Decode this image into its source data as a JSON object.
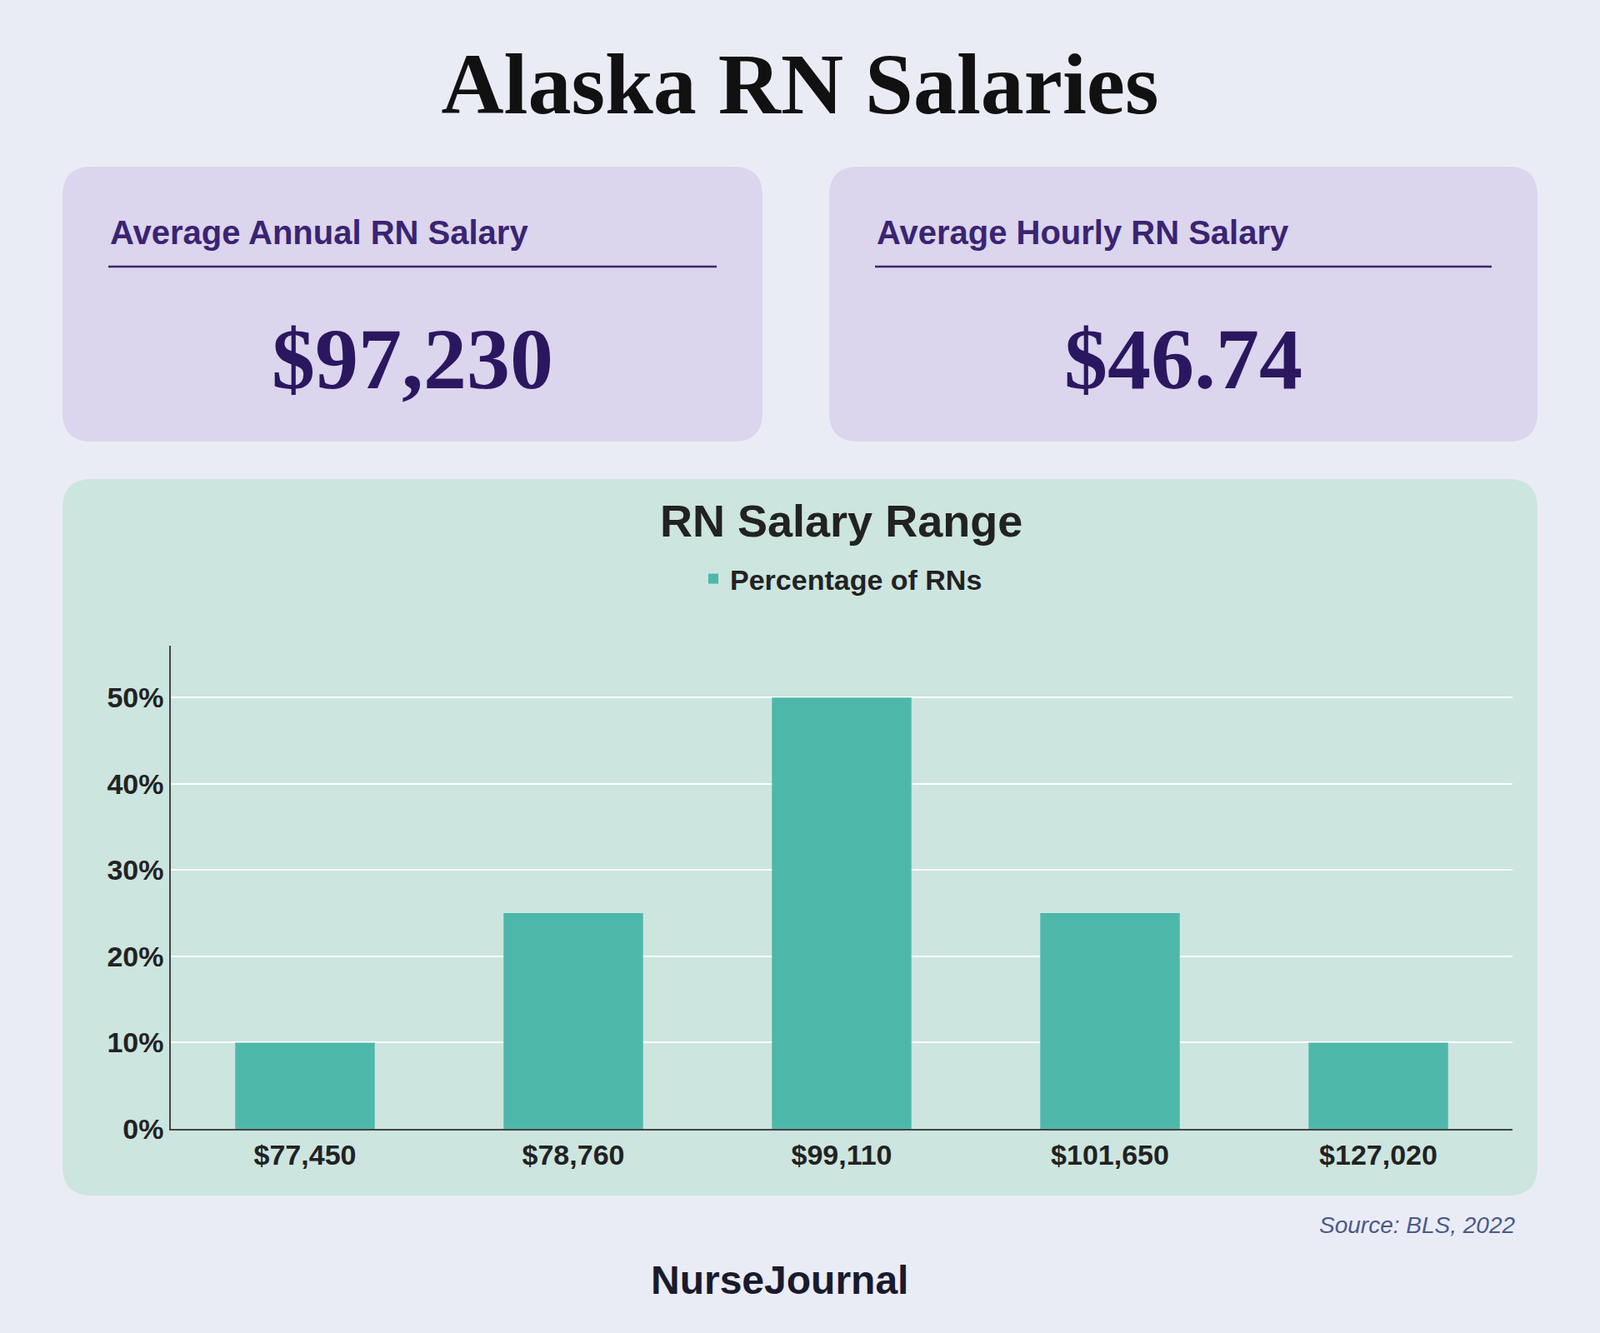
{
  "chart_data": {
    "type": "bar",
    "title": "Alaska RN Salaries",
    "subtitle": "RN Salary Range",
    "categories": [
      "$77,450",
      "$78,760",
      "$99,110",
      "$101,650",
      "$127,020"
    ],
    "series": [
      {
        "name": "Percentage of RNs",
        "color": "#4db8aa",
        "values": [
          10,
          25,
          50,
          25,
          10
        ]
      }
    ],
    "ylim": [
      0,
      56
    ],
    "yticks": [
      {
        "value": 0,
        "label": "0%"
      },
      {
        "value": 10,
        "label": "10%"
      },
      {
        "value": 20,
        "label": "20%"
      },
      {
        "value": 30,
        "label": "30%"
      },
      {
        "value": 40,
        "label": "40%"
      },
      {
        "value": 50,
        "label": "50%"
      }
    ],
    "grid": true,
    "legend": "upper center",
    "annotations": [
      "Average Annual RN Salary",
      "$97,230",
      "Average Hourly RN Salary",
      "$46.74",
      "Source: BLS, 2022",
      "NurseJournal"
    ]
  }
}
